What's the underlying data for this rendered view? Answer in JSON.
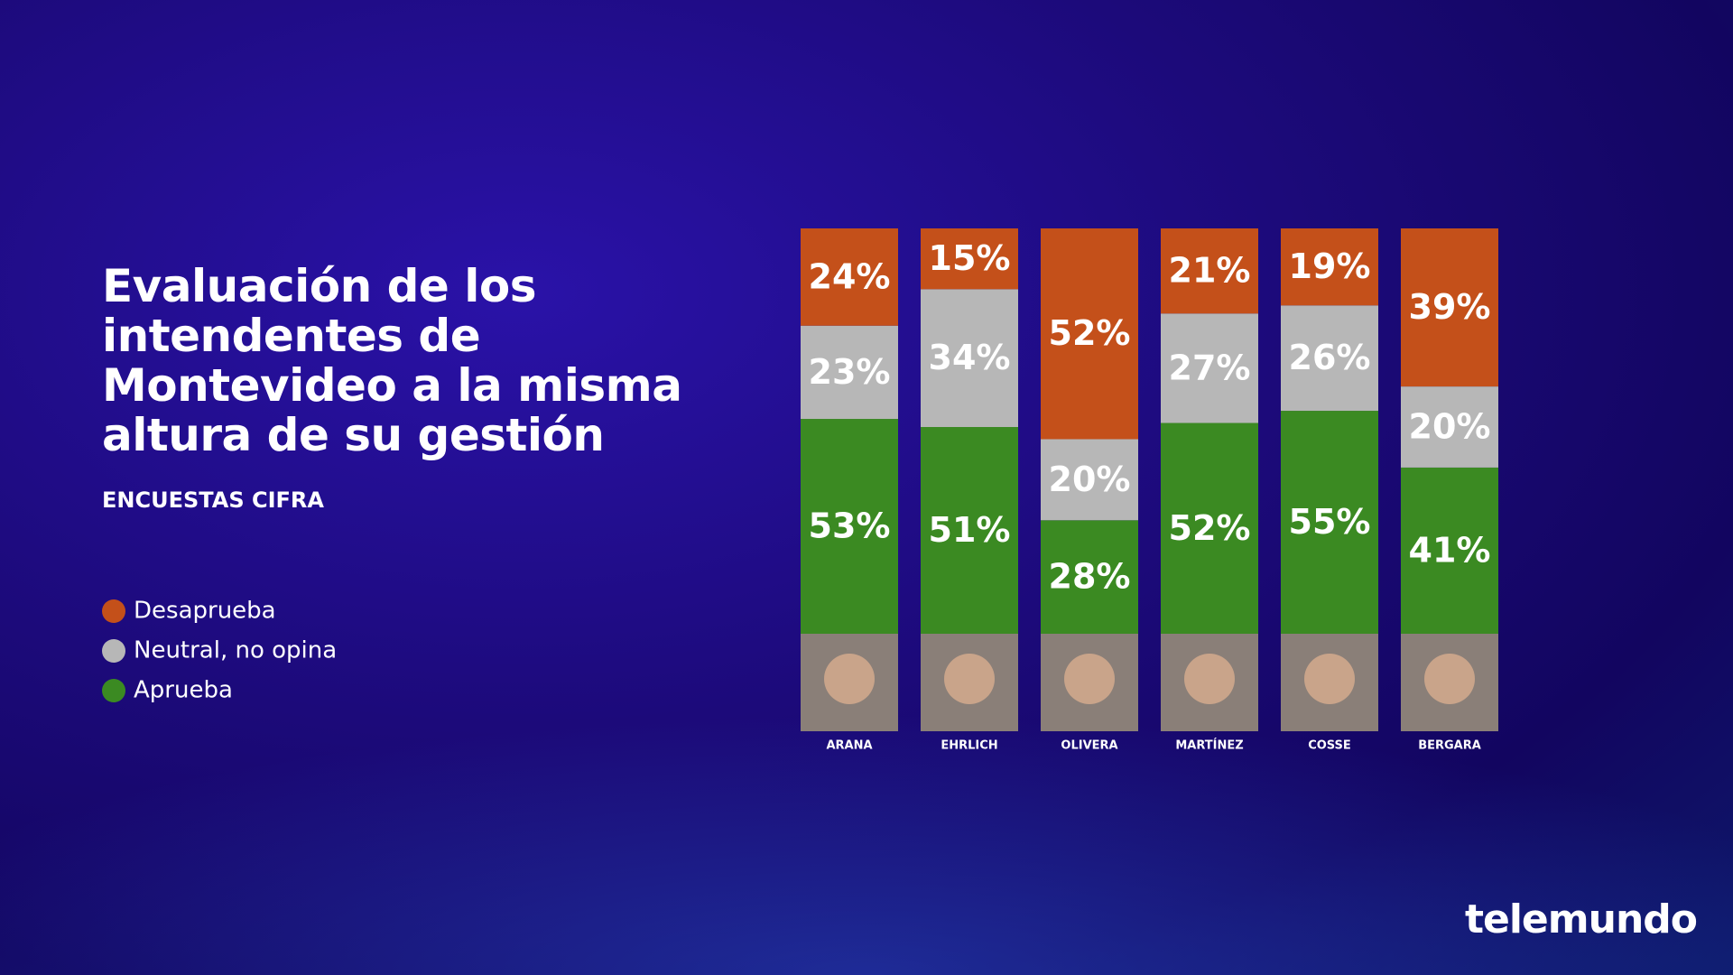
{
  "chart_data": {
    "type": "stacked_bar",
    "title": "Evaluación de los intendentes de Montevideo a la misma altura de su gestión",
    "subtitle": "ENCUESTAS CIFRA",
    "categories": [
      "ARANA",
      "EHRLICH",
      "OLIVERA",
      "MARTÍNEZ",
      "COSSE",
      "BERGARA"
    ],
    "series": [
      {
        "name": "Desaprueba",
        "color": "#c4501a",
        "values": [
          24,
          15,
          52,
          21,
          19,
          39
        ],
        "value_labels": [
          "24%",
          "15%",
          "52%",
          "21%",
          "19%",
          "39%"
        ]
      },
      {
        "name": "Neutral, no opina",
        "color": "#b7b7b7",
        "values": [
          23,
          34,
          20,
          27,
          26,
          20
        ],
        "value_labels": [
          "23%",
          "34%",
          "20%",
          "27%",
          "26%",
          "20%"
        ]
      },
      {
        "name": "Aprueba",
        "color": "#3b8a22",
        "values": [
          53,
          51,
          28,
          52,
          55,
          41
        ],
        "value_labels": [
          "53%",
          "51%",
          "28%",
          "52%",
          "55%",
          "41%"
        ]
      }
    ],
    "ylim": [
      0,
      100
    ]
  },
  "logo": "telemundo"
}
